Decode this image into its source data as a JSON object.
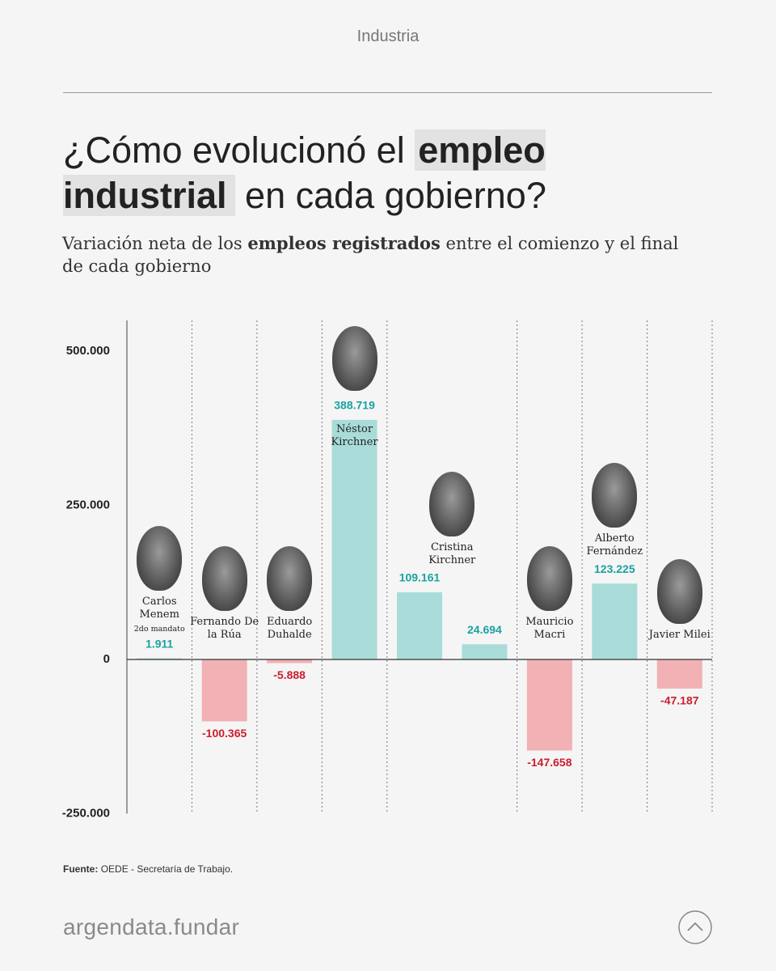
{
  "chart_data": {
    "type": "bar",
    "header": "Industria",
    "title": [
      "¿Cómo evolucionó el",
      "empleo industrial",
      "en cada gobierno?"
    ],
    "subtitle": [
      "Variación neta de los",
      "empleos registrados",
      "entre el comienzo y el final de cada gobierno"
    ],
    "categories": [
      "Carlos Menem",
      "Fernando De la Rúa",
      "Eduardo Duhalde",
      "Néstor Kirchner",
      "Cristina Kirchner",
      null,
      "Mauricio Macri",
      "Alberto Fernández",
      "Javier Milei"
    ],
    "category_notes": [
      "2do mandato",
      null,
      null,
      null,
      null,
      null,
      null,
      null,
      null
    ],
    "values": [
      1911,
      -100365,
      -5888,
      388719,
      109161,
      24694,
      -147658,
      123225,
      -47187
    ],
    "value_labels": [
      "1.911",
      "-100.365",
      "-5.888",
      "388.719",
      "109.161",
      "24.694",
      "-147.658",
      "123.225",
      "-47.187"
    ],
    "positive_color": "#a9dcd9",
    "negative_color": "#f2b1b4",
    "positive_label_color": "#1aa39e",
    "negative_label_color": "#cc1d2f",
    "ylim": [
      -250000,
      550000
    ],
    "yticks": [
      {
        "value": -250000,
        "label": "-250.000"
      },
      0,
      {
        "value": 250000,
        "label": "250.000"
      },
      {
        "value": 500000,
        "label": "500.000"
      }
    ],
    "source_label": "Fuente:",
    "source": "OEDE - Secretaría de Trabajo.",
    "footer": "argendata.fundar"
  }
}
